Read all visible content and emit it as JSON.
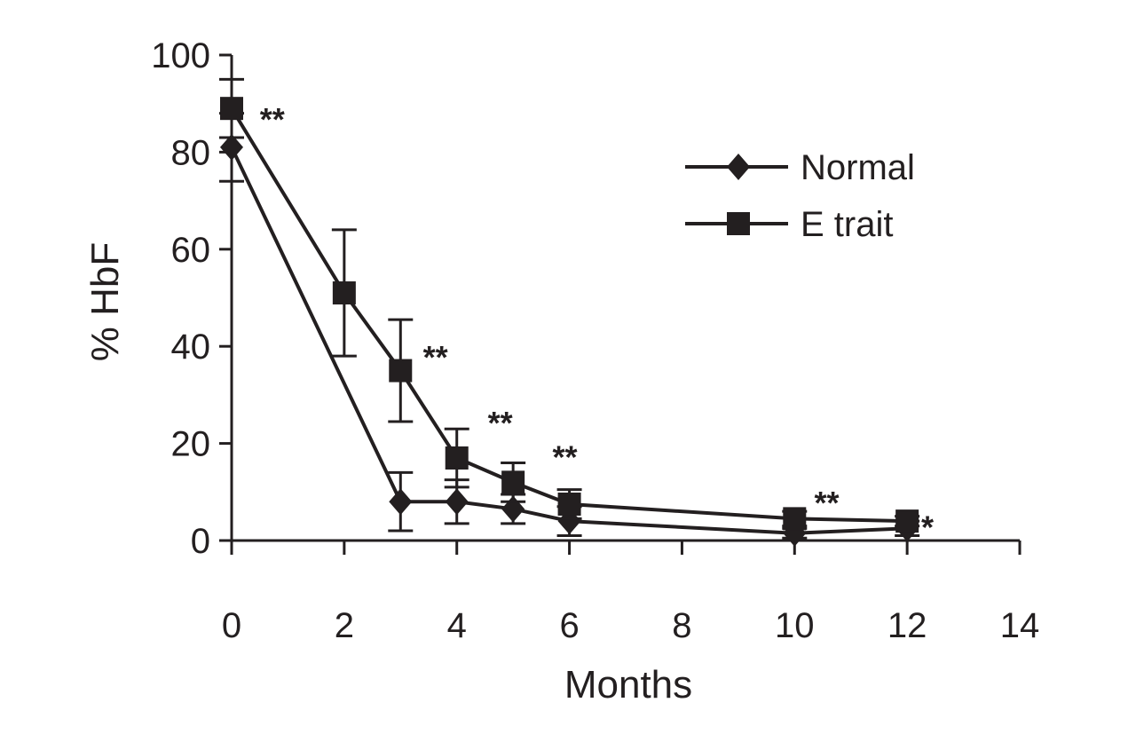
{
  "chart_data": {
    "type": "line",
    "title": "",
    "xlabel": "Months",
    "ylabel": "% HbF",
    "xlim": [
      0,
      14
    ],
    "ylim": [
      0,
      100
    ],
    "xticks": [
      0,
      2,
      4,
      6,
      8,
      10,
      12,
      14
    ],
    "yticks": [
      0,
      20,
      40,
      60,
      80,
      100
    ],
    "grid": false,
    "legend_position": "top-right",
    "series": [
      {
        "name": "Normal",
        "marker": "diamond",
        "x": [
          0,
          3,
          4,
          5,
          6,
          10,
          12
        ],
        "y": [
          81,
          8,
          8,
          6.5,
          4,
          1.5,
          2.5
        ],
        "err": [
          7,
          6,
          4.5,
          3,
          3,
          1,
          1.5
        ]
      },
      {
        "name": "E trait",
        "marker": "square",
        "x": [
          0,
          2,
          3,
          4,
          5,
          6,
          10,
          12
        ],
        "y": [
          89,
          51,
          35,
          17,
          12,
          7.5,
          4.5,
          4
        ],
        "err": [
          6,
          13,
          10.5,
          6,
          4,
          3,
          1.5,
          1
        ]
      }
    ],
    "annotations": [
      {
        "text": "**",
        "x": 0.5,
        "y": 87
      },
      {
        "text": "**",
        "x": 3.4,
        "y": 38
      },
      {
        "text": "**",
        "x": 4.55,
        "y": 24.5
      },
      {
        "text": "**",
        "x": 5.7,
        "y": 17.5
      },
      {
        "text": "**",
        "x": 10.35,
        "y": 8
      },
      {
        "text": "*",
        "x": 12.25,
        "y": 3
      }
    ]
  }
}
